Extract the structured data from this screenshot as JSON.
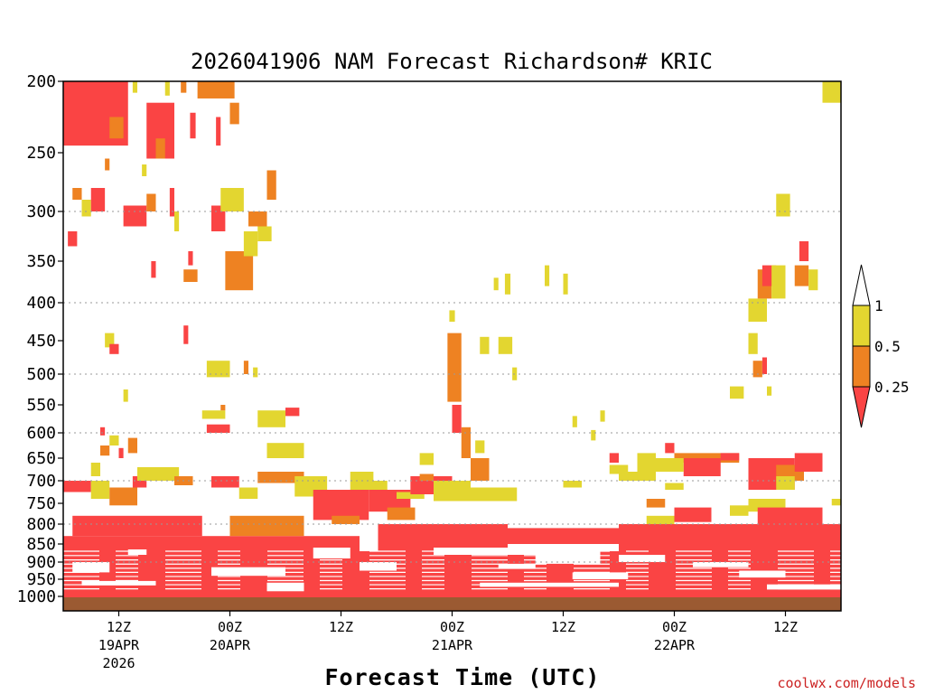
{
  "chart_data": {
    "type": "heatmap",
    "title": "2026041906 NAM Forecast Richardson# KRIC",
    "xlabel": "Forecast Time (UTC)",
    "ylabel": "Pressure (hPa)",
    "credit": "coolwx.com/models",
    "y_ticks": [
      "200",
      "250",
      "300",
      "350",
      "400",
      "450",
      "500",
      "550",
      "600",
      "650",
      "700",
      "750",
      "800",
      "850",
      "900",
      "950",
      "1000"
    ],
    "y_gridlines": [
      300,
      400,
      500,
      600,
      700,
      800,
      900
    ],
    "x_ticks": [
      {
        "hour": 6,
        "label": "12Z",
        "date": "19APR",
        "year": "2026"
      },
      {
        "hour": 18,
        "label": "00Z",
        "date": "20APR",
        "year": ""
      },
      {
        "hour": 30,
        "label": "12Z",
        "date": "",
        "year": ""
      },
      {
        "hour": 42,
        "label": "00Z",
        "date": "21APR",
        "year": ""
      },
      {
        "hour": 54,
        "label": "12Z",
        "date": "",
        "year": ""
      },
      {
        "hour": 66,
        "label": "00Z",
        "date": "22APR",
        "year": ""
      },
      {
        "hour": 78,
        "label": "12Z",
        "date": "",
        "year": ""
      }
    ],
    "x_range_hours": [
      0,
      84
    ],
    "y_range_hpa": [
      200,
      1025
    ],
    "legend": {
      "placement": "right",
      "levels": [
        "1",
        "0.5",
        "0.25"
      ],
      "bins": [
        {
          "range": "> 1",
          "color": "#ffffff"
        },
        {
          "range": "0.5 - 1",
          "color": "#e3d630"
        },
        {
          "range": "0.25 - 0.5",
          "color": "#ee8222"
        },
        {
          "range": "< 0.25",
          "color": "#fa4444"
        }
      ]
    },
    "colors": {
      "red": "#fa4444",
      "orange": "#ee8222",
      "yellow": "#e3d630",
      "ground": "#9b5a32"
    },
    "regions": [
      {
        "color": "red",
        "h0": 0,
        "h1": 7,
        "p0": 200,
        "p1": 245
      },
      {
        "color": "orange",
        "h0": 5,
        "h1": 6.5,
        "p0": 225,
        "p1": 240
      },
      {
        "color": "yellow",
        "h0": 7.5,
        "h1": 8,
        "p0": 200,
        "p1": 208
      },
      {
        "color": "red",
        "h0": 9,
        "h1": 12,
        "p0": 215,
        "p1": 255
      },
      {
        "color": "orange",
        "h0": 10,
        "h1": 11,
        "p0": 240,
        "p1": 255
      },
      {
        "color": "yellow",
        "h0": 11,
        "h1": 11.5,
        "p0": 200,
        "p1": 210
      },
      {
        "color": "orange",
        "h0": 12.7,
        "h1": 13.3,
        "p0": 200,
        "p1": 208
      },
      {
        "color": "orange",
        "h0": 14.5,
        "h1": 18.5,
        "p0": 200,
        "p1": 212
      },
      {
        "color": "red",
        "h0": 13.7,
        "h1": 14.3,
        "p0": 222,
        "p1": 240
      },
      {
        "color": "red",
        "h0": 16.5,
        "h1": 17,
        "p0": 225,
        "p1": 245
      },
      {
        "color": "orange",
        "h0": 18,
        "h1": 19,
        "p0": 215,
        "p1": 230
      },
      {
        "color": "red",
        "h0": 0.5,
        "h1": 1.5,
        "p0": 320,
        "p1": 335
      },
      {
        "color": "orange",
        "h0": 1,
        "h1": 2,
        "p0": 280,
        "p1": 290
      },
      {
        "color": "yellow",
        "h0": 2,
        "h1": 3,
        "p0": 290,
        "p1": 305
      },
      {
        "color": "red",
        "h0": 3,
        "h1": 4.5,
        "p0": 280,
        "p1": 300
      },
      {
        "color": "orange",
        "h0": 4.5,
        "h1": 5,
        "p0": 255,
        "p1": 265
      },
      {
        "color": "red",
        "h0": 6.5,
        "h1": 9,
        "p0": 295,
        "p1": 315
      },
      {
        "color": "orange",
        "h0": 9,
        "h1": 10,
        "p0": 285,
        "p1": 300
      },
      {
        "color": "yellow",
        "h0": 8.5,
        "h1": 9,
        "p0": 260,
        "p1": 270
      },
      {
        "color": "red",
        "h0": 9.5,
        "h1": 10,
        "p0": 350,
        "p1": 370
      },
      {
        "color": "red",
        "h0": 11.5,
        "h1": 12,
        "p0": 280,
        "p1": 305
      },
      {
        "color": "yellow",
        "h0": 12,
        "h1": 12.5,
        "p0": 300,
        "p1": 320
      },
      {
        "color": "red",
        "h0": 13.5,
        "h1": 14,
        "p0": 340,
        "p1": 355
      },
      {
        "color": "orange",
        "h0": 13,
        "h1": 14.5,
        "p0": 360,
        "p1": 375
      },
      {
        "color": "red",
        "h0": 16,
        "h1": 17.5,
        "p0": 295,
        "p1": 320
      },
      {
        "color": "yellow",
        "h0": 17,
        "h1": 19.5,
        "p0": 280,
        "p1": 300
      },
      {
        "color": "orange",
        "h0": 17.5,
        "h1": 20.5,
        "p0": 340,
        "p1": 385
      },
      {
        "color": "yellow",
        "h0": 19.5,
        "h1": 21,
        "p0": 320,
        "p1": 345
      },
      {
        "color": "orange",
        "h0": 20,
        "h1": 22,
        "p0": 300,
        "p1": 315
      },
      {
        "color": "yellow",
        "h0": 21,
        "h1": 22.5,
        "p0": 315,
        "p1": 330
      },
      {
        "color": "orange",
        "h0": 22,
        "h1": 23,
        "p0": 265,
        "p1": 290
      },
      {
        "color": "red",
        "h0": 13,
        "h1": 13.5,
        "p0": 430,
        "p1": 455
      },
      {
        "color": "yellow",
        "h0": 4.5,
        "h1": 5.5,
        "p0": 440,
        "p1": 460
      },
      {
        "color": "red",
        "h0": 5,
        "h1": 6,
        "p0": 455,
        "p1": 470
      },
      {
        "color": "yellow",
        "h0": 15.5,
        "h1": 18,
        "p0": 480,
        "p1": 505
      },
      {
        "color": "orange",
        "h0": 19.5,
        "h1": 20,
        "p0": 480,
        "p1": 500
      },
      {
        "color": "yellow",
        "h0": 20.5,
        "h1": 21,
        "p0": 490,
        "p1": 505
      },
      {
        "color": "red",
        "h0": 15.5,
        "h1": 18,
        "p0": 585,
        "p1": 600
      },
      {
        "color": "yellow",
        "h0": 15,
        "h1": 17.5,
        "p0": 560,
        "p1": 575
      },
      {
        "color": "orange",
        "h0": 17,
        "h1": 17.5,
        "p0": 550,
        "p1": 560
      },
      {
        "color": "yellow",
        "h0": 21,
        "h1": 24,
        "p0": 560,
        "p1": 590
      },
      {
        "color": "red",
        "h0": 24,
        "h1": 25.5,
        "p0": 555,
        "p1": 570
      },
      {
        "color": "yellow",
        "h0": 6.5,
        "h1": 7,
        "p0": 525,
        "p1": 545
      },
      {
        "color": "orange",
        "h0": 4,
        "h1": 5,
        "p0": 625,
        "p1": 645
      },
      {
        "color": "red",
        "h0": 4,
        "h1": 4.5,
        "p0": 590,
        "p1": 605
      },
      {
        "color": "yellow",
        "h0": 5,
        "h1": 6,
        "p0": 605,
        "p1": 625
      },
      {
        "color": "orange",
        "h0": 7,
        "h1": 8,
        "p0": 610,
        "p1": 640
      },
      {
        "color": "red",
        "h0": 6,
        "h1": 6.5,
        "p0": 630,
        "p1": 650
      },
      {
        "color": "yellow",
        "h0": 3,
        "h1": 4,
        "p0": 660,
        "p1": 690
      },
      {
        "color": "red",
        "h0": 0,
        "h1": 3,
        "p0": 700,
        "p1": 725
      },
      {
        "color": "yellow",
        "h0": 3,
        "h1": 5,
        "p0": 700,
        "p1": 740
      },
      {
        "color": "orange",
        "h0": 5,
        "h1": 8,
        "p0": 715,
        "p1": 755
      },
      {
        "color": "red",
        "h0": 7.5,
        "h1": 9,
        "p0": 690,
        "p1": 715
      },
      {
        "color": "yellow",
        "h0": 8,
        "h1": 12.5,
        "p0": 670,
        "p1": 700
      },
      {
        "color": "orange",
        "h0": 12,
        "h1": 14,
        "p0": 690,
        "p1": 710
      },
      {
        "color": "red",
        "h0": 16,
        "h1": 19,
        "p0": 690,
        "p1": 715
      },
      {
        "color": "yellow",
        "h0": 19,
        "h1": 21,
        "p0": 715,
        "p1": 740
      },
      {
        "color": "orange",
        "h0": 21,
        "h1": 26,
        "p0": 680,
        "p1": 705
      },
      {
        "color": "yellow",
        "h0": 22,
        "h1": 26,
        "p0": 620,
        "p1": 650
      },
      {
        "color": "yellow",
        "h0": 25,
        "h1": 28.5,
        "p0": 690,
        "p1": 735
      },
      {
        "color": "red",
        "h0": 27,
        "h1": 33,
        "p0": 720,
        "p1": 790
      },
      {
        "color": "orange",
        "h0": 29,
        "h1": 32,
        "p0": 780,
        "p1": 800
      },
      {
        "color": "yellow",
        "h0": 31,
        "h1": 33.5,
        "p0": 680,
        "p1": 720
      },
      {
        "color": "red",
        "h0": 33,
        "h1": 37.5,
        "p0": 720,
        "p1": 770
      },
      {
        "color": "yellow",
        "h0": 32,
        "h1": 35,
        "p0": 700,
        "p1": 720
      },
      {
        "color": "orange",
        "h0": 35,
        "h1": 38,
        "p0": 760,
        "p1": 790
      },
      {
        "color": "yellow",
        "h0": 36,
        "h1": 39,
        "p0": 725,
        "p1": 740
      },
      {
        "color": "red",
        "h0": 37.5,
        "h1": 42,
        "p0": 690,
        "p1": 730
      },
      {
        "color": "orange",
        "h0": 38.5,
        "h1": 40,
        "p0": 685,
        "p1": 700
      },
      {
        "color": "yellow",
        "h0": 38.5,
        "h1": 40,
        "p0": 640,
        "p1": 665
      },
      {
        "color": "yellow",
        "h0": 40,
        "h1": 44,
        "p0": 700,
        "p1": 745
      },
      {
        "color": "yellow",
        "h0": 44,
        "h1": 49,
        "p0": 715,
        "p1": 745
      },
      {
        "color": "orange",
        "h0": 41.5,
        "h1": 43,
        "p0": 440,
        "p1": 545
      },
      {
        "color": "yellow",
        "h0": 41.7,
        "h1": 42.3,
        "p0": 410,
        "p1": 425
      },
      {
        "color": "orange",
        "h0": 43,
        "h1": 44,
        "p0": 590,
        "p1": 650
      },
      {
        "color": "red",
        "h0": 42,
        "h1": 43,
        "p0": 550,
        "p1": 600
      },
      {
        "color": "orange",
        "h0": 44,
        "h1": 46,
        "p0": 650,
        "p1": 700
      },
      {
        "color": "yellow",
        "h0": 44.5,
        "h1": 45.5,
        "p0": 615,
        "p1": 640
      },
      {
        "color": "yellow",
        "h0": 45,
        "h1": 46,
        "p0": 445,
        "p1": 470
      },
      {
        "color": "yellow",
        "h0": 47,
        "h1": 48.5,
        "p0": 445,
        "p1": 470
      },
      {
        "color": "yellow",
        "h0": 48.5,
        "h1": 49,
        "p0": 490,
        "p1": 510
      },
      {
        "color": "yellow",
        "h0": 46.5,
        "h1": 47,
        "p0": 370,
        "p1": 385
      },
      {
        "color": "yellow",
        "h0": 47.7,
        "h1": 48.3,
        "p0": 365,
        "p1": 390
      },
      {
        "color": "yellow",
        "h0": 52,
        "h1": 52.5,
        "p0": 355,
        "p1": 380
      },
      {
        "color": "yellow",
        "h0": 54,
        "h1": 54.5,
        "p0": 365,
        "p1": 390
      },
      {
        "color": "yellow",
        "h0": 55,
        "h1": 55.5,
        "p0": 570,
        "p1": 590
      },
      {
        "color": "yellow",
        "h0": 54,
        "h1": 56,
        "p0": 700,
        "p1": 715
      },
      {
        "color": "yellow",
        "h0": 57,
        "h1": 57.5,
        "p0": 595,
        "p1": 615
      },
      {
        "color": "yellow",
        "h0": 58,
        "h1": 58.5,
        "p0": 560,
        "p1": 580
      },
      {
        "color": "red",
        "h0": 48,
        "h1": 60,
        "p0": 810,
        "p1": 850
      },
      {
        "color": "yellow",
        "h0": 59,
        "h1": 61,
        "p0": 665,
        "p1": 685
      },
      {
        "color": "red",
        "h0": 59,
        "h1": 60,
        "p0": 640,
        "p1": 660
      },
      {
        "color": "yellow",
        "h0": 60,
        "h1": 62,
        "p0": 680,
        "p1": 700
      },
      {
        "color": "yellow",
        "h0": 62,
        "h1": 64,
        "p0": 640,
        "p1": 700
      },
      {
        "color": "orange",
        "h0": 63,
        "h1": 65,
        "p0": 740,
        "p1": 760
      },
      {
        "color": "red",
        "h0": 65,
        "h1": 66,
        "p0": 620,
        "p1": 640
      },
      {
        "color": "orange",
        "h0": 66,
        "h1": 73,
        "p0": 640,
        "p1": 660
      },
      {
        "color": "red",
        "h0": 67,
        "h1": 71,
        "p0": 650,
        "p1": 690
      },
      {
        "color": "yellow",
        "h0": 63,
        "h1": 67,
        "p0": 650,
        "p1": 680
      },
      {
        "color": "red",
        "h0": 71,
        "h1": 73,
        "p0": 640,
        "p1": 655
      },
      {
        "color": "yellow",
        "h0": 65,
        "h1": 67,
        "p0": 705,
        "p1": 720
      },
      {
        "color": "red",
        "h0": 66,
        "h1": 70,
        "p0": 760,
        "p1": 795
      },
      {
        "color": "yellow",
        "h0": 63,
        "h1": 66,
        "p0": 780,
        "p1": 810
      },
      {
        "color": "red",
        "h0": 70,
        "h1": 74,
        "p0": 800,
        "p1": 840
      },
      {
        "color": "yellow",
        "h0": 72,
        "h1": 74,
        "p0": 755,
        "p1": 780
      },
      {
        "color": "yellow",
        "h0": 74,
        "h1": 78,
        "p0": 740,
        "p1": 770
      },
      {
        "color": "red",
        "h0": 74,
        "h1": 79,
        "p0": 650,
        "p1": 720
      },
      {
        "color": "orange",
        "h0": 77,
        "h1": 80,
        "p0": 665,
        "p1": 700
      },
      {
        "color": "red",
        "h0": 79,
        "h1": 82,
        "p0": 640,
        "p1": 680
      },
      {
        "color": "yellow",
        "h0": 77,
        "h1": 79,
        "p0": 690,
        "p1": 720
      },
      {
        "color": "red",
        "h0": 75,
        "h1": 82,
        "p0": 760,
        "p1": 800
      },
      {
        "color": "orange",
        "h0": 77,
        "h1": 79,
        "p0": 800,
        "p1": 830
      },
      {
        "color": "yellow",
        "h0": 74,
        "h1": 76,
        "p0": 395,
        "p1": 425
      },
      {
        "color": "orange",
        "h0": 75,
        "h1": 76.5,
        "p0": 360,
        "p1": 395
      },
      {
        "color": "red",
        "h0": 75.5,
        "h1": 77,
        "p0": 355,
        "p1": 380
      },
      {
        "color": "yellow",
        "h0": 76.5,
        "h1": 78,
        "p0": 355,
        "p1": 395
      },
      {
        "color": "orange",
        "h0": 79,
        "h1": 80.5,
        "p0": 355,
        "p1": 380
      },
      {
        "color": "yellow",
        "h0": 80.5,
        "h1": 81.5,
        "p0": 360,
        "p1": 385
      },
      {
        "color": "red",
        "h0": 79.5,
        "h1": 80.5,
        "p0": 330,
        "p1": 350
      },
      {
        "color": "yellow",
        "h0": 77,
        "h1": 78.5,
        "p0": 285,
        "p1": 305
      },
      {
        "color": "yellow",
        "h0": 82,
        "h1": 84,
        "p0": 200,
        "p1": 215
      },
      {
        "color": "yellow",
        "h0": 74,
        "h1": 75,
        "p0": 440,
        "p1": 470
      },
      {
        "color": "orange",
        "h0": 74.5,
        "h1": 75.5,
        "p0": 480,
        "p1": 505
      },
      {
        "color": "red",
        "h0": 75.5,
        "h1": 76,
        "p0": 475,
        "p1": 500
      },
      {
        "color": "yellow",
        "h0": 72,
        "h1": 73.5,
        "p0": 520,
        "p1": 540
      },
      {
        "color": "yellow",
        "h0": 76,
        "h1": 76.5,
        "p0": 520,
        "p1": 535
      },
      {
        "color": "yellow",
        "h0": 83,
        "h1": 84,
        "p0": 740,
        "p1": 755
      },
      {
        "color": "red",
        "h0": 0,
        "h1": 84,
        "p0": 870,
        "p1": 990
      },
      {
        "color": "red",
        "h0": 0,
        "h1": 32,
        "p0": 830,
        "p1": 870
      },
      {
        "color": "orange",
        "h0": 18,
        "h1": 26,
        "p0": 780,
        "p1": 830
      },
      {
        "color": "red",
        "h0": 1,
        "h1": 15,
        "p0": 780,
        "p1": 830
      },
      {
        "color": "red",
        "h0": 34,
        "h1": 48,
        "p0": 800,
        "p1": 870
      },
      {
        "color": "red",
        "h0": 60,
        "h1": 84,
        "p0": 800,
        "p1": 870
      },
      {
        "color": "red",
        "h0": 0,
        "h1": 84,
        "p0": 985,
        "p1": 1005
      }
    ],
    "white_gaps": [
      {
        "h0": 1,
        "h1": 5,
        "p0": 900,
        "p1": 930
      },
      {
        "h0": 7,
        "h1": 9,
        "p0": 865,
        "p1": 880
      },
      {
        "h0": 16,
        "h1": 24,
        "p0": 915,
        "p1": 940
      },
      {
        "h0": 22,
        "h1": 26,
        "p0": 960,
        "p1": 985
      },
      {
        "h0": 27,
        "h1": 31,
        "p0": 860,
        "p1": 890
      },
      {
        "h0": 32,
        "h1": 36,
        "p0": 900,
        "p1": 925
      },
      {
        "h0": 40,
        "h1": 52,
        "p0": 860,
        "p1": 880
      },
      {
        "h0": 47,
        "h1": 51,
        "p0": 905,
        "p1": 920
      },
      {
        "h0": 51,
        "h1": 58,
        "p0": 870,
        "p1": 905
      },
      {
        "h0": 55,
        "h1": 61,
        "p0": 930,
        "p1": 950
      },
      {
        "h0": 60,
        "h1": 65,
        "p0": 880,
        "p1": 900
      },
      {
        "h0": 68,
        "h1": 74,
        "p0": 900,
        "p1": 915
      },
      {
        "h0": 73,
        "h1": 78,
        "p0": 925,
        "p1": 945
      },
      {
        "h0": 76,
        "h1": 84,
        "p0": 965,
        "p1": 980
      },
      {
        "h0": 2,
        "h1": 10,
        "p0": 955,
        "p1": 968
      },
      {
        "h0": 45,
        "h1": 60,
        "p0": 960,
        "p1": 972
      }
    ]
  }
}
